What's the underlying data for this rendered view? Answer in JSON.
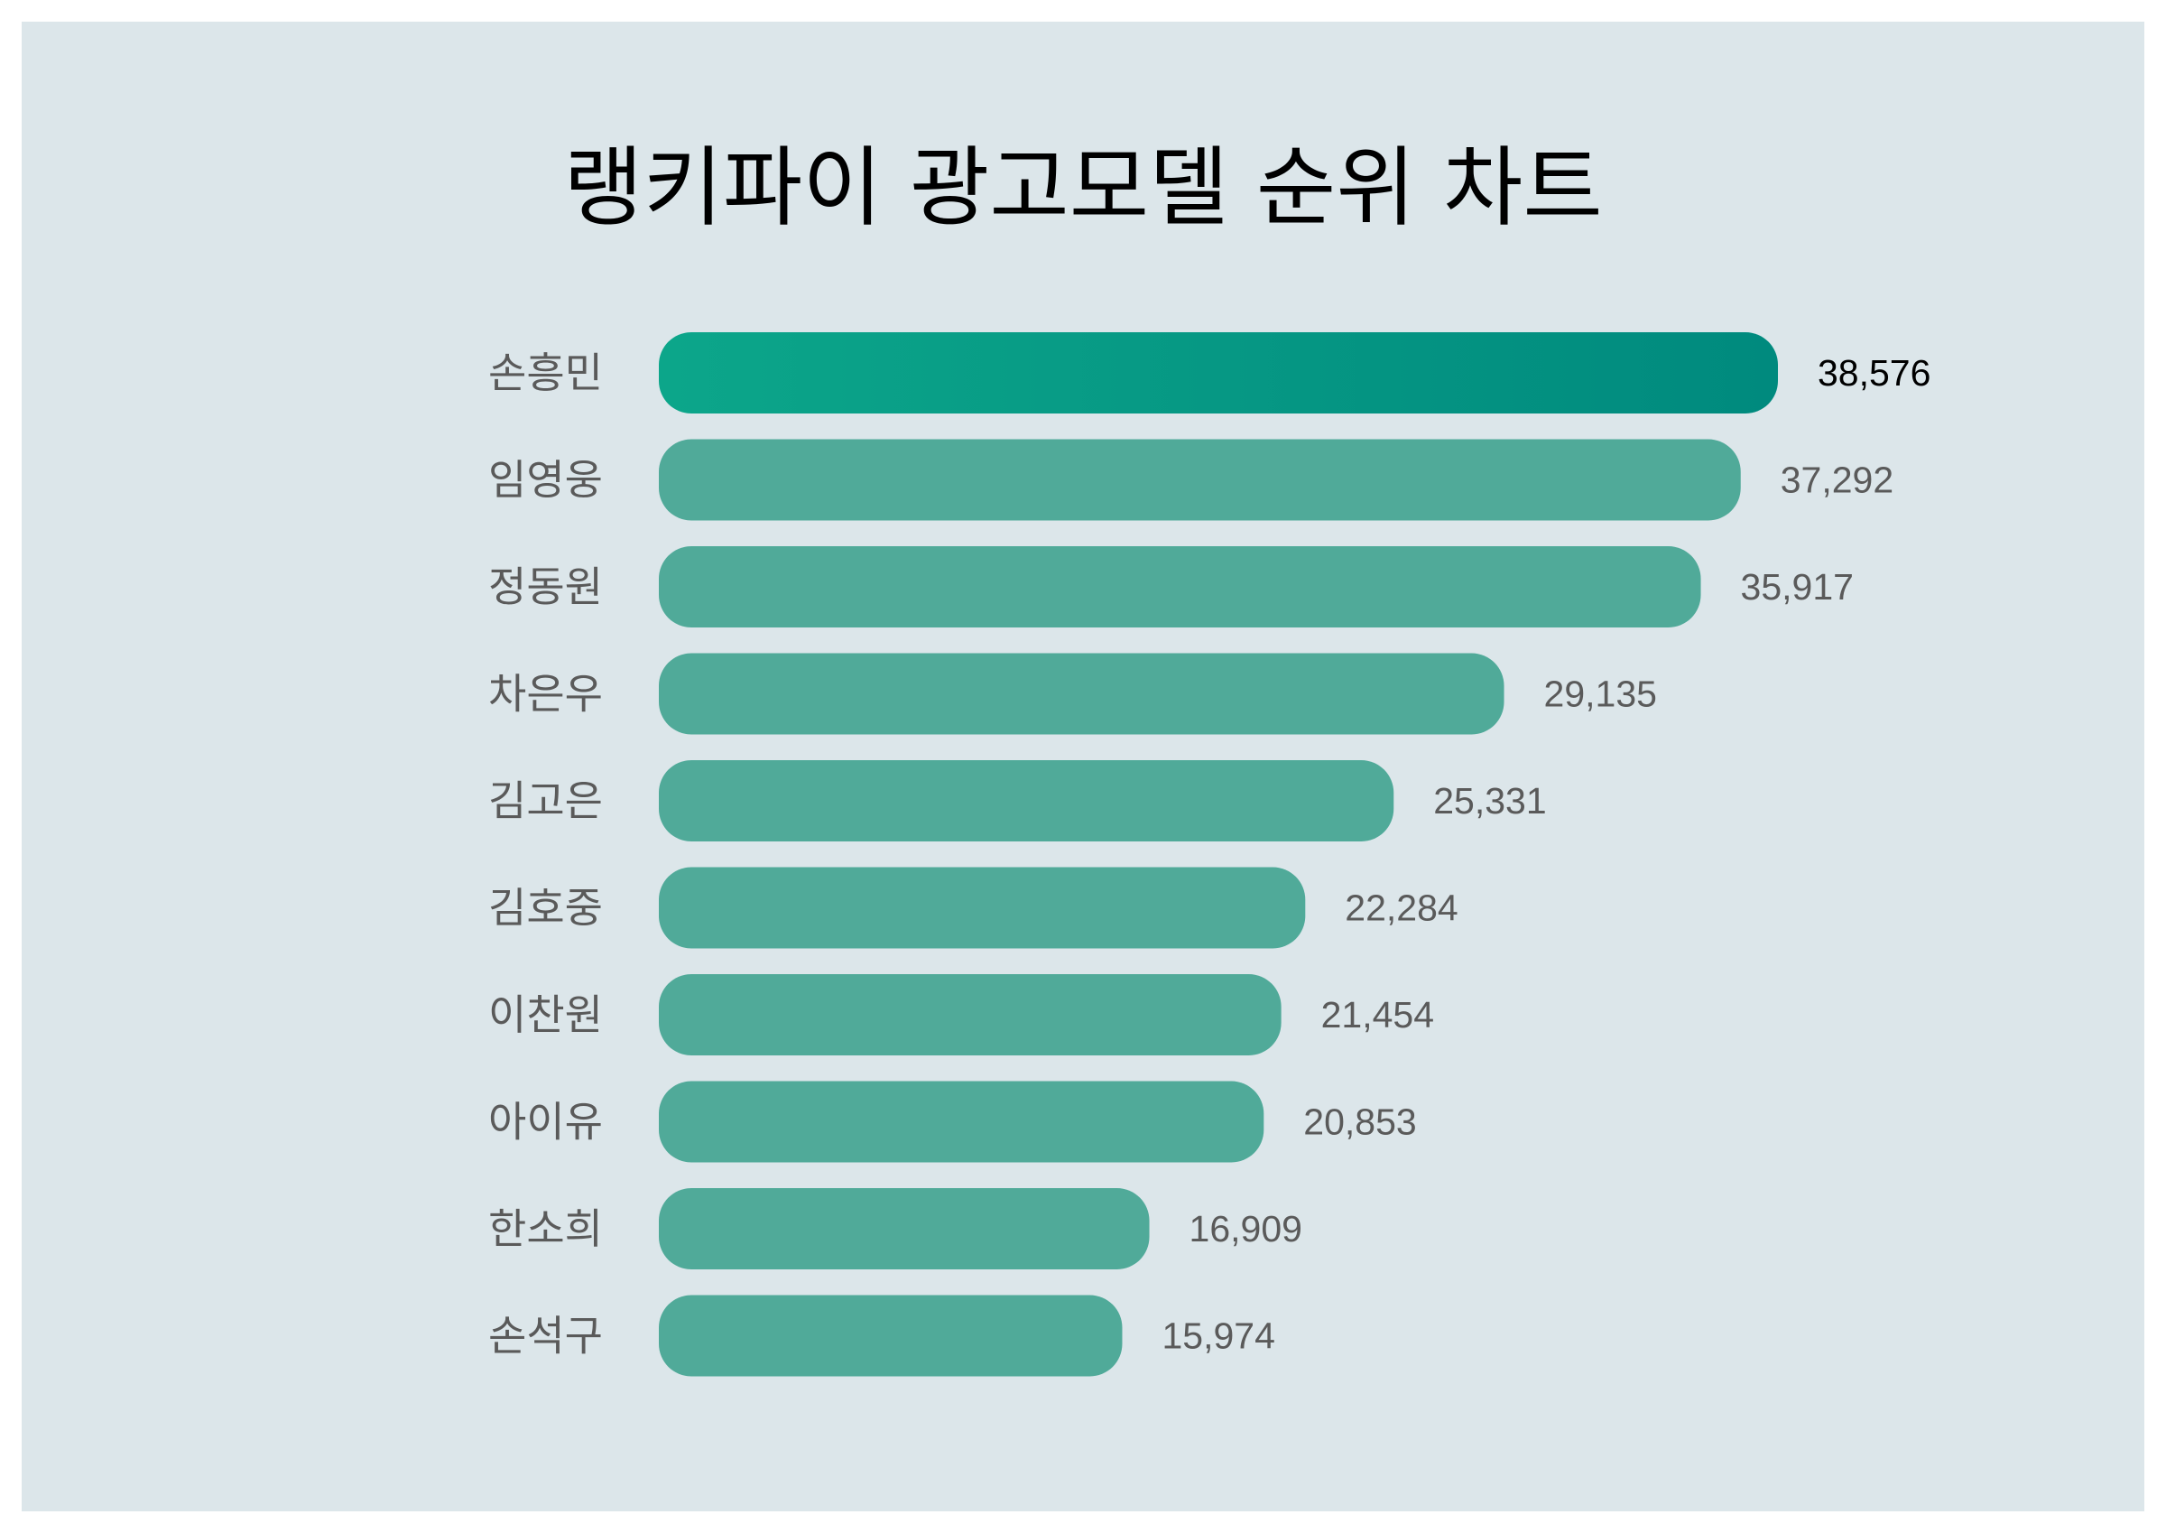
{
  "chart_data": {
    "type": "bar",
    "orientation": "horizontal",
    "title": "랭키파이 광고모델 순위 차트",
    "categories": [
      "손흥민",
      "임영웅",
      "정동원",
      "차은우",
      "김고은",
      "김호중",
      "이찬원",
      "아이유",
      "한소희",
      "손석구"
    ],
    "values": [
      38576,
      37292,
      35917,
      29135,
      25331,
      22284,
      21454,
      20853,
      16909,
      15974
    ],
    "value_labels": [
      "38,576",
      "37,292",
      "35,917",
      "29,135",
      "25,331",
      "22,284",
      "21,454",
      "20,853",
      "16,909",
      "15,974"
    ],
    "xlabel": "",
    "ylabel": "",
    "grid": false,
    "legend": "none"
  },
  "colors": {
    "background": "#dce6ea",
    "bar": "#50aa99",
    "highlight_bar_start": "#0ca68a",
    "highlight_bar_end": "#008a7e",
    "label_text": "#5a5a5a",
    "highlight_value_text": "#000000"
  }
}
